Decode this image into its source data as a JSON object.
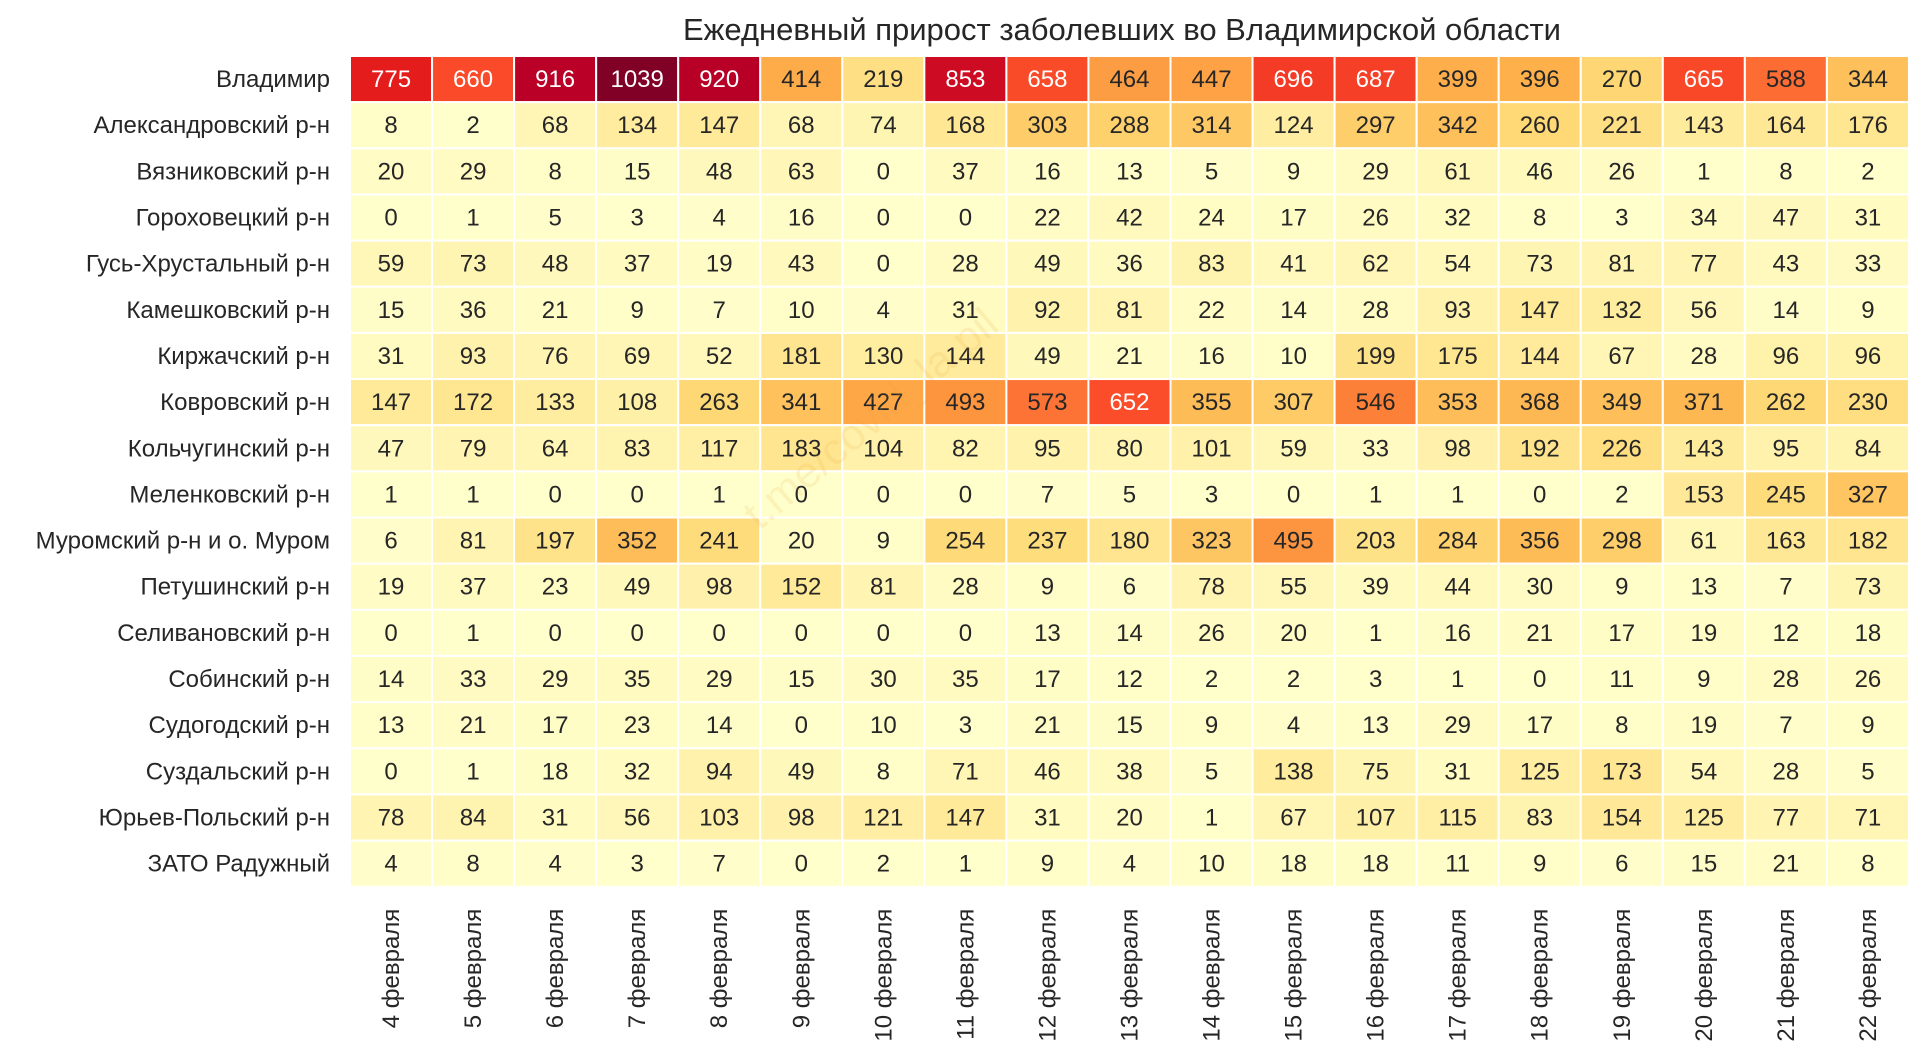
{
  "chart_data": {
    "type": "heatmap",
    "title": "Ежедневный прирост заболевших во Владимирской области",
    "watermark": "t.me/covid_la.pil",
    "xlabel": "",
    "ylabel": "",
    "color_scale": "YlOrRd",
    "vmin": 0,
    "vmax": 1039,
    "columns": [
      "4 февраля",
      "5 февраля",
      "6 февраля",
      "7 февраля",
      "8 февраля",
      "9 февраля",
      "10 февраля",
      "11 февраля",
      "12 февраля",
      "13 февраля",
      "14 февраля",
      "15 февраля",
      "16 февраля",
      "17 февраля",
      "18 февраля",
      "19 февраля",
      "20 февраля",
      "21 февраля",
      "22 февраля"
    ],
    "rows": [
      {
        "name": "Владимир",
        "values": [
          775,
          660,
          916,
          1039,
          920,
          414,
          219,
          853,
          658,
          464,
          447,
          696,
          687,
          399,
          396,
          270,
          665,
          588,
          344
        ]
      },
      {
        "name": "Александровский р-н",
        "values": [
          8,
          2,
          68,
          134,
          147,
          68,
          74,
          168,
          303,
          288,
          314,
          124,
          297,
          342,
          260,
          221,
          143,
          164,
          176
        ]
      },
      {
        "name": "Вязниковский р-н",
        "values": [
          20,
          29,
          8,
          15,
          48,
          63,
          0,
          37,
          16,
          13,
          5,
          9,
          29,
          61,
          46,
          26,
          1,
          8,
          2
        ]
      },
      {
        "name": "Гороховецкий р-н",
        "values": [
          0,
          1,
          5,
          3,
          4,
          16,
          0,
          0,
          22,
          42,
          24,
          17,
          26,
          32,
          8,
          3,
          34,
          47,
          31
        ]
      },
      {
        "name": "Гусь-Хрустальный р-н",
        "values": [
          59,
          73,
          48,
          37,
          19,
          43,
          0,
          28,
          49,
          36,
          83,
          41,
          62,
          54,
          73,
          81,
          77,
          43,
          33
        ]
      },
      {
        "name": "Камешковский р-н",
        "values": [
          15,
          36,
          21,
          9,
          7,
          10,
          4,
          31,
          92,
          81,
          22,
          14,
          28,
          93,
          147,
          132,
          56,
          14,
          9
        ]
      },
      {
        "name": "Киржачский р-н",
        "values": [
          31,
          93,
          76,
          69,
          52,
          181,
          130,
          144,
          49,
          21,
          16,
          10,
          199,
          175,
          144,
          67,
          28,
          96,
          96
        ]
      },
      {
        "name": "Ковровский р-н",
        "values": [
          147,
          172,
          133,
          108,
          263,
          341,
          427,
          493,
          573,
          652,
          355,
          307,
          546,
          353,
          368,
          349,
          371,
          262,
          230
        ]
      },
      {
        "name": "Кольчугинский р-н",
        "values": [
          47,
          79,
          64,
          83,
          117,
          183,
          104,
          82,
          95,
          80,
          101,
          59,
          33,
          98,
          192,
          226,
          143,
          95,
          84
        ]
      },
      {
        "name": "Меленковский р-н",
        "values": [
          1,
          1,
          0,
          0,
          1,
          0,
          0,
          0,
          7,
          5,
          3,
          0,
          1,
          1,
          0,
          2,
          153,
          245,
          327
        ]
      },
      {
        "name": "Муромский р-н и о. Муром",
        "values": [
          6,
          81,
          197,
          352,
          241,
          20,
          9,
          254,
          237,
          180,
          323,
          495,
          203,
          284,
          356,
          298,
          61,
          163,
          182
        ]
      },
      {
        "name": "Петушинский р-н",
        "values": [
          19,
          37,
          23,
          49,
          98,
          152,
          81,
          28,
          9,
          6,
          78,
          55,
          39,
          44,
          30,
          9,
          13,
          7,
          73
        ]
      },
      {
        "name": "Селивановский р-н",
        "values": [
          0,
          1,
          0,
          0,
          0,
          0,
          0,
          0,
          13,
          14,
          26,
          20,
          1,
          16,
          21,
          17,
          19,
          12,
          18
        ]
      },
      {
        "name": "Собинский р-н",
        "values": [
          14,
          33,
          29,
          35,
          29,
          15,
          30,
          35,
          17,
          12,
          2,
          2,
          3,
          1,
          0,
          11,
          9,
          28,
          26
        ]
      },
      {
        "name": "Судогодский р-н",
        "values": [
          13,
          21,
          17,
          23,
          14,
          0,
          10,
          3,
          21,
          15,
          9,
          4,
          13,
          29,
          17,
          8,
          19,
          7,
          9
        ]
      },
      {
        "name": "Суздальский р-н",
        "values": [
          0,
          1,
          18,
          32,
          94,
          49,
          8,
          71,
          46,
          38,
          5,
          138,
          75,
          31,
          125,
          173,
          54,
          28,
          5
        ]
      },
      {
        "name": "Юрьев-Польский р-н",
        "values": [
          78,
          84,
          31,
          56,
          103,
          98,
          121,
          147,
          31,
          20,
          1,
          67,
          107,
          115,
          83,
          154,
          125,
          77,
          71
        ]
      },
      {
        "name": "ЗАТО Радужный",
        "values": [
          4,
          8,
          4,
          3,
          7,
          0,
          2,
          1,
          9,
          4,
          10,
          18,
          18,
          11,
          9,
          6,
          15,
          21,
          8
        ]
      }
    ]
  }
}
